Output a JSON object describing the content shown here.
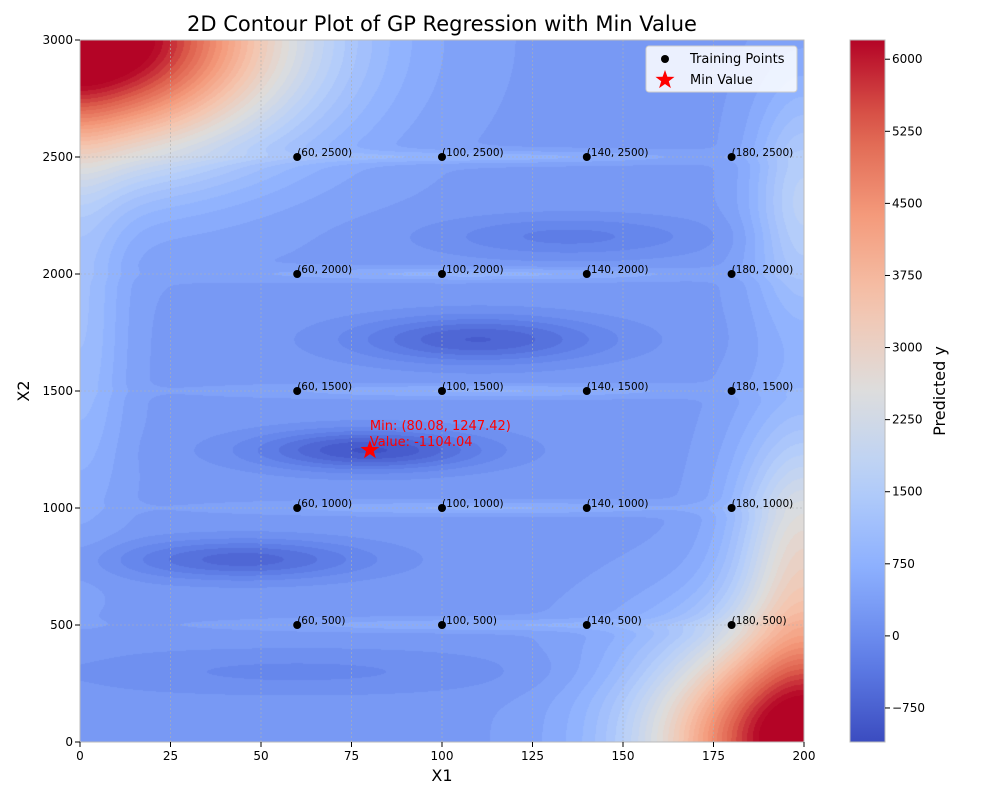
{
  "chart_data": {
    "type": "contour",
    "title": "2D Contour Plot of GP Regression with Min Value",
    "xlabel": "X1",
    "ylabel": "X2",
    "xlim": [
      0,
      200
    ],
    "ylim": [
      0,
      3000
    ],
    "x_ticks": [
      "0",
      "25",
      "50",
      "75",
      "100",
      "125",
      "150",
      "175",
      "200"
    ],
    "y_ticks": [
      "0",
      "500",
      "1000",
      "1500",
      "2000",
      "2500",
      "3000"
    ],
    "grid": true,
    "colormap": "coolwarm",
    "legend": {
      "placement": "top-right",
      "entries": [
        {
          "label": "Training Points",
          "marker": "circle",
          "color": "#000000"
        },
        {
          "label": "Min Value",
          "marker": "star",
          "color": "#ff0000"
        }
      ]
    },
    "training_points": [
      {
        "x": 60,
        "y": 500,
        "label": "(60, 500)"
      },
      {
        "x": 60,
        "y": 1000,
        "label": "(60, 1000)"
      },
      {
        "x": 60,
        "y": 1500,
        "label": "(60, 1500)"
      },
      {
        "x": 60,
        "y": 2000,
        "label": "(60, 2000)"
      },
      {
        "x": 60,
        "y": 2500,
        "label": "(60, 2500)"
      },
      {
        "x": 100,
        "y": 500,
        "label": "(100, 500)"
      },
      {
        "x": 100,
        "y": 1000,
        "label": "(100, 1000)"
      },
      {
        "x": 100,
        "y": 1500,
        "label": "(100, 1500)"
      },
      {
        "x": 100,
        "y": 2000,
        "label": "(100, 2000)"
      },
      {
        "x": 100,
        "y": 2500,
        "label": "(100, 2500)"
      },
      {
        "x": 140,
        "y": 500,
        "label": "(140, 500)"
      },
      {
        "x": 140,
        "y": 1000,
        "label": "(140, 1000)"
      },
      {
        "x": 140,
        "y": 1500,
        "label": "(140, 1500)"
      },
      {
        "x": 140,
        "y": 2000,
        "label": "(140, 2000)"
      },
      {
        "x": 140,
        "y": 2500,
        "label": "(140, 2500)"
      },
      {
        "x": 180,
        "y": 500,
        "label": "(180, 500)"
      },
      {
        "x": 180,
        "y": 1000,
        "label": "(180, 1000)"
      },
      {
        "x": 180,
        "y": 1500,
        "label": "(180, 1500)"
      },
      {
        "x": 180,
        "y": 2000,
        "label": "(180, 2000)"
      },
      {
        "x": 180,
        "y": 2500,
        "label": "(180, 2500)"
      }
    ],
    "min_point": {
      "x": 80.08,
      "y": 1247.42,
      "value": -1104.04,
      "label_line1": "Min: (80.08, 1247.42)",
      "label_line2": "Value: -1104.04"
    },
    "colorbar": {
      "label": "Predicted y",
      "range": [
        -1104.04,
        6200
      ],
      "ticks": [
        {
          "value": -750,
          "label": "−750"
        },
        {
          "value": 0,
          "label": "0"
        },
        {
          "value": 750,
          "label": "750"
        },
        {
          "value": 1500,
          "label": "1500"
        },
        {
          "value": 2250,
          "label": "2250"
        },
        {
          "value": 3000,
          "label": "3000"
        },
        {
          "value": 3750,
          "label": "3750"
        },
        {
          "value": 4500,
          "label": "4500"
        },
        {
          "value": 5250,
          "label": "5250"
        },
        {
          "value": 6000,
          "label": "6000"
        }
      ]
    },
    "colors": {
      "low": "#3b4cc0",
      "mid": "#dddddd",
      "high": "#b40426",
      "training_point": "#000000",
      "min_marker": "#ff0000"
    }
  }
}
